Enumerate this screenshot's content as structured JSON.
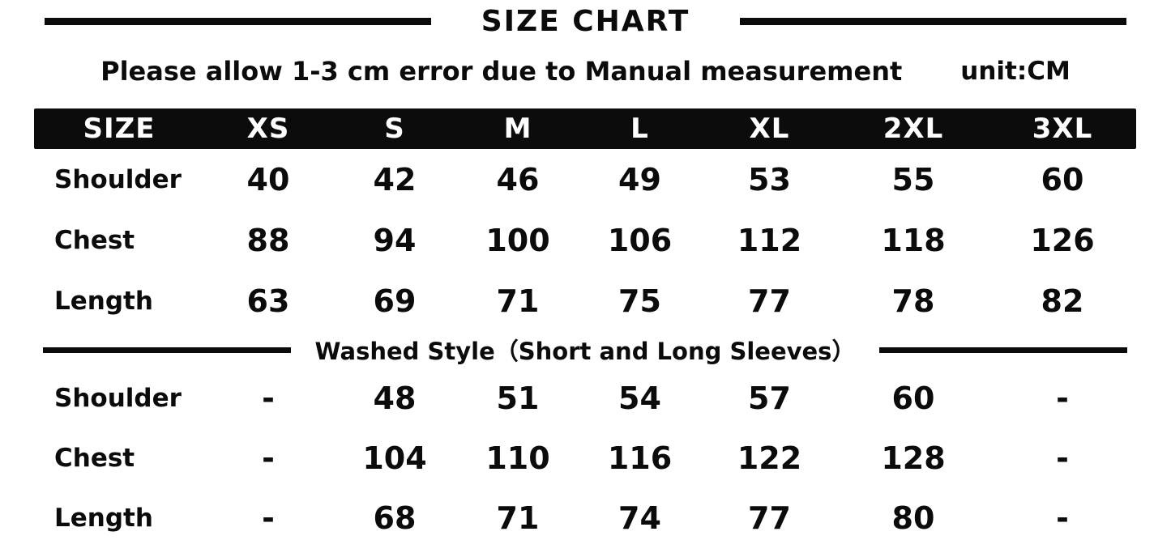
{
  "page": {
    "title": "SIZE CHART",
    "subtitle": "Please allow 1-3 cm error due to Manual measurement",
    "unit_label": "unit:CM"
  },
  "chart_data": {
    "type": "table",
    "title": "SIZE CHART",
    "unit": "CM",
    "columns": [
      "SIZE",
      "XS",
      "S",
      "M",
      "L",
      "XL",
      "2XL",
      "3XL"
    ],
    "sections": [
      {
        "name": "regular-style",
        "rows": [
          {
            "label": "Shoulder",
            "values": [
              "40",
              "42",
              "46",
              "49",
              "53",
              "55",
              "60"
            ]
          },
          {
            "label": "Chest",
            "values": [
              "88",
              "94",
              "100",
              "106",
              "112",
              "118",
              "126"
            ]
          },
          {
            "label": "Length",
            "values": [
              "63",
              "69",
              "71",
              "75",
              "77",
              "78",
              "82"
            ]
          }
        ]
      },
      {
        "name": "washed-style",
        "heading": "Washed Style（Short and Long Sleeves）",
        "rows": [
          {
            "label": "Shoulder",
            "values": [
              "-",
              "48",
              "51",
              "54",
              "57",
              "60",
              "-"
            ]
          },
          {
            "label": "Chest",
            "values": [
              "-",
              "104",
              "110",
              "116",
              "122",
              "128",
              "-"
            ]
          },
          {
            "label": "Length",
            "values": [
              "-",
              "68",
              "71",
              "74",
              "77",
              "80",
              "-"
            ]
          }
        ]
      }
    ]
  },
  "colors": {
    "ink": "#0b0b0b",
    "header_bg": "#0c0c0c",
    "header_text": "#ffffff",
    "background": "#ffffff"
  }
}
